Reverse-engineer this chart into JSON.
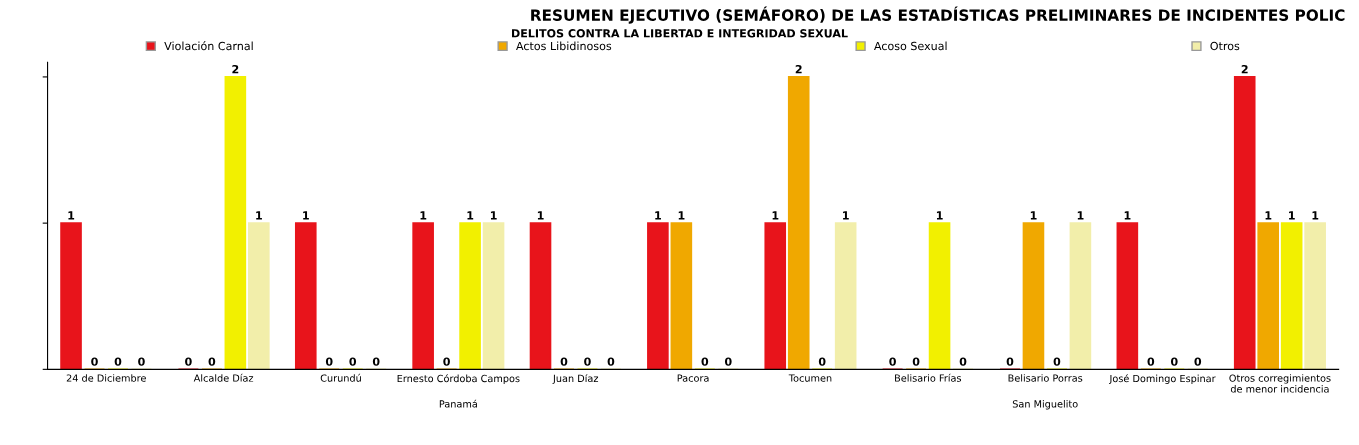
{
  "chart_data": {
    "type": "bar",
    "title": "RESUMEN EJECUTIVO (SEMÁFORO) DE LAS ESTADÍSTICAS PRELIMINARES DE INCIDENTES POLIC",
    "subtitle": "DELITOS CONTRA LA LIBERTAD E INTEGRIDAD SEXUAL",
    "categories": [
      "24 de Diciembre",
      "Alcalde Díaz",
      "Curundú",
      "Ernesto Córdoba Campos",
      "Juan Díaz",
      "Pacora",
      "Tocumen",
      "Belisario Frías",
      "Belisario Porras",
      "José Domingo Espinar",
      "Otros corregimientos de menor incidencia"
    ],
    "series": [
      {
        "name": "Violación Carnal",
        "color": "#e8141b",
        "values": [
          1,
          0,
          1,
          1,
          1,
          1,
          1,
          0,
          0,
          1,
          2
        ]
      },
      {
        "name": "Actos Libidinosos",
        "color": "#f0a800",
        "values": [
          0,
          0,
          0,
          0,
          0,
          1,
          2,
          0,
          1,
          0,
          1
        ]
      },
      {
        "name": "Acoso Sexual",
        "color": "#f2f000",
        "values": [
          0,
          2,
          0,
          1,
          0,
          0,
          0,
          1,
          0,
          0,
          1
        ]
      },
      {
        "name": "Otros",
        "color": "#f2eeaa",
        "values": [
          0,
          1,
          0,
          1,
          0,
          0,
          1,
          0,
          1,
          0,
          1
        ]
      }
    ],
    "annotations": [
      "Panamá",
      "San Miguelito"
    ],
    "ylim": [
      0,
      2.1
    ],
    "yticks": [
      {
        "value": 0,
        "label": null
      },
      {
        "value": 1,
        "label": null
      },
      {
        "value": 2,
        "label": null
      }
    ],
    "data_labels": true,
    "legend": "top",
    "grid": false
  }
}
